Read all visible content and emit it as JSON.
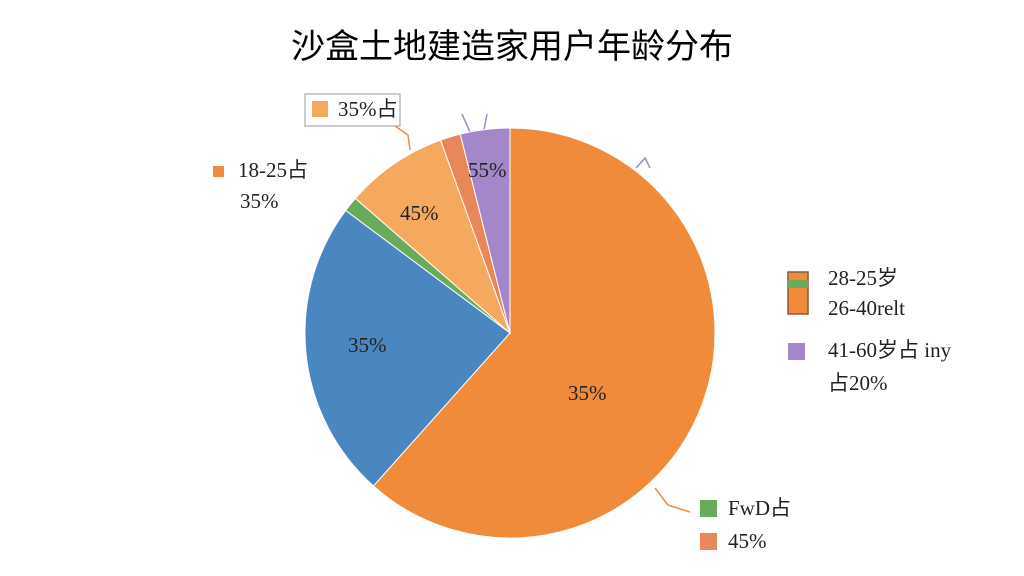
{
  "chart_data": {
    "type": "pie",
    "title": "沙盒土地建造家用户年龄分布",
    "values": [
      61.6,
      23.6,
      1.2,
      8.1,
      1.6,
      3.9
    ],
    "colors": [
      "#ef8b3a",
      "#4a86bf",
      "#6aaa5c",
      "#f5a95e",
      "#e8875a",
      "#a487c9"
    ],
    "annotations": [
      "35%占",
      "18-25占",
      "35%",
      "45%",
      "55%",
      "35%",
      "35%",
      "28-25岁",
      "26-40relt",
      "41-60岁占 iny",
      "占20%",
      "FwD占",
      "45%"
    ]
  }
}
